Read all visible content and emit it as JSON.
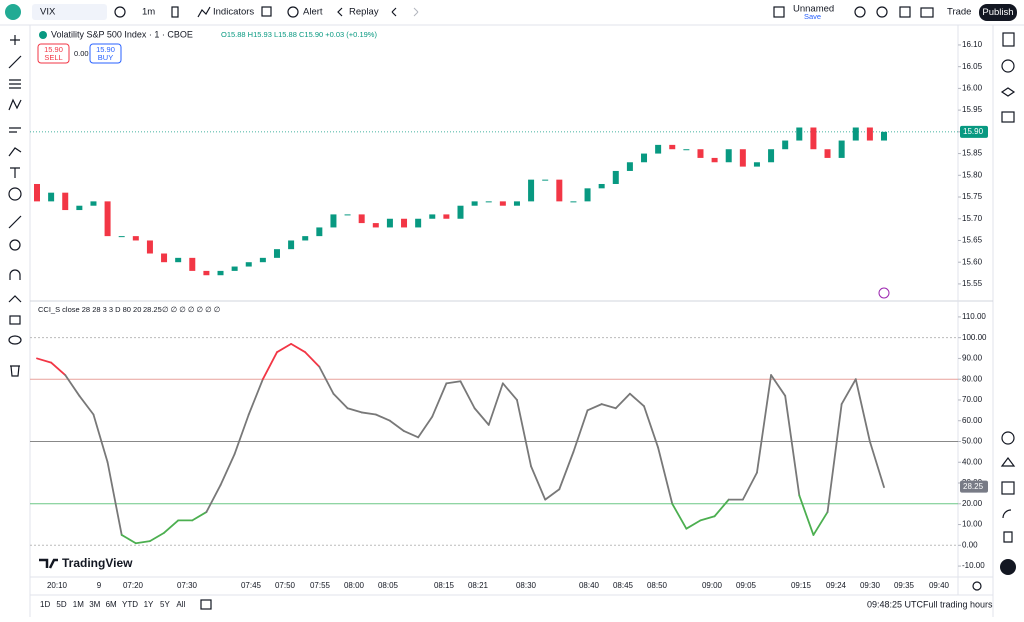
{
  "toolbar": {
    "symbol": "VIX",
    "interval": "1m",
    "indicators": "Indicators",
    "alert": "Alert",
    "replay": "Replay",
    "layout_name": "Unnamed",
    "save": "Save",
    "trade": "Trade",
    "publish": "Publish"
  },
  "legend": {
    "title": "Volatility S&P 500 Index · 1 · CBOE",
    "ohlc": "O15.88 H15.93 L15.88 C15.90 +0.03 (+0.19%)",
    "sell_price": "15.90",
    "sell": "SELL",
    "spread": "0.00",
    "buy_price": "15.90",
    "buy": "BUY"
  },
  "price_chart": {
    "type": "candlestick",
    "ylim": [
      15.513,
      16.139
    ],
    "yticks": [
      {
        "value": 16.1,
        "label": "16.10"
      },
      {
        "value": 16.05,
        "label": "16.05"
      },
      {
        "value": 16.0,
        "label": "16.00"
      },
      {
        "value": 15.95,
        "label": "15.95"
      },
      {
        "value": 15.9,
        "label": "15.90"
      },
      {
        "value": 15.85,
        "label": "15.85"
      },
      {
        "value": 15.8,
        "label": "15.80"
      },
      {
        "value": 15.75,
        "label": "15.75"
      },
      {
        "value": 15.7,
        "label": "15.70"
      },
      {
        "value": 15.65,
        "label": "15.65"
      },
      {
        "value": 15.6,
        "label": "15.60"
      },
      {
        "value": 15.55,
        "label": "15.55"
      }
    ],
    "up_color": "#089981",
    "down_color": "#f23645",
    "open": [
      15.78,
      15.74,
      15.76,
      15.72,
      15.73,
      15.74,
      15.66,
      15.66,
      15.65,
      15.62,
      15.6,
      15.61,
      15.58,
      15.57,
      15.58,
      15.59,
      15.6,
      15.61,
      15.63,
      15.65,
      15.66,
      15.68,
      15.71,
      15.71,
      15.69,
      15.68,
      15.7,
      15.68,
      15.7,
      15.71,
      15.7,
      15.73,
      15.74,
      15.74,
      15.73,
      15.74,
      15.79,
      15.79,
      15.74,
      15.74,
      15.77,
      15.78,
      15.81,
      15.83,
      15.85,
      15.87,
      15.86,
      15.86,
      15.84,
      15.83,
      15.86,
      15.82,
      15.83,
      15.86,
      15.88,
      15.91,
      15.86,
      15.84,
      15.88,
      15.91,
      15.88
    ],
    "close": [
      15.74,
      15.76,
      15.72,
      15.73,
      15.74,
      15.66,
      15.66,
      15.65,
      15.62,
      15.6,
      15.61,
      15.58,
      15.57,
      15.58,
      15.59,
      15.6,
      15.61,
      15.63,
      15.65,
      15.66,
      15.68,
      15.71,
      15.71,
      15.69,
      15.68,
      15.7,
      15.68,
      15.7,
      15.71,
      15.7,
      15.73,
      15.74,
      15.74,
      15.73,
      15.74,
      15.79,
      15.79,
      15.74,
      15.74,
      15.77,
      15.78,
      15.81,
      15.83,
      15.85,
      15.87,
      15.86,
      15.86,
      15.84,
      15.83,
      15.86,
      15.82,
      15.83,
      15.86,
      15.88,
      15.91,
      15.86,
      15.84,
      15.88,
      15.91,
      15.88,
      15.9
    ],
    "last_price": {
      "value": 15.9,
      "label": "15.90"
    }
  },
  "indicator": {
    "type": "line",
    "legend": "CCI_S close 28 28 3 3 D 80 20",
    "legend_value": "28.25",
    "legend_flags": "∅ ∅ ∅ ∅ ∅ ∅ ∅",
    "ylim": [
      -14.3,
      116.7
    ],
    "yticks": [
      {
        "value": 110,
        "label": "110.00"
      },
      {
        "value": 100,
        "label": "100.00"
      },
      {
        "value": 90,
        "label": "90.00"
      },
      {
        "value": 80,
        "label": "80.00"
      },
      {
        "value": 70,
        "label": "70.00"
      },
      {
        "value": 60,
        "label": "60.00"
      },
      {
        "value": 50,
        "label": "50.00"
      },
      {
        "value": 40,
        "label": "40.00"
      },
      {
        "value": 30,
        "label": "30.00"
      },
      {
        "value": 20,
        "label": "20.00"
      },
      {
        "value": 10,
        "label": "10.00"
      },
      {
        "value": 0,
        "label": "0.00"
      },
      {
        "value": -10,
        "label": "-10.00"
      }
    ],
    "levels": [
      {
        "value": 100,
        "color": "#bbbbbb"
      },
      {
        "value": 80,
        "color": "#e8a19b"
      },
      {
        "value": 50,
        "color": "#888888"
      },
      {
        "value": 20,
        "color": "#6cc785"
      },
      {
        "value": 0,
        "color": "#bbbbbb"
      }
    ],
    "upper": 80,
    "lower": 20,
    "color": "#787878",
    "upper_color": "#f23645",
    "lower_color": "#4caf50",
    "values": [
      90,
      88,
      82,
      72,
      63,
      40,
      5,
      1,
      2,
      6,
      12,
      12,
      16,
      29,
      44,
      63,
      80,
      93,
      97,
      93,
      86,
      73,
      66,
      64,
      63,
      60,
      55,
      52,
      62,
      78,
      79,
      66,
      58,
      78,
      70,
      38,
      22,
      27,
      45,
      65,
      68,
      66,
      73,
      67,
      47,
      20,
      8,
      12,
      14,
      22,
      22,
      35,
      82,
      72,
      24,
      5,
      16,
      68,
      80,
      50,
      28
    ],
    "last_value": {
      "value": 28.25,
      "label": "28.25"
    }
  },
  "time_axis": [
    "20:10",
    "9",
    "07:20",
    "07:30",
    "07:45",
    "07:50",
    "07:55",
    "08:00",
    "08:05",
    "08:15",
    "08:21",
    "08:30",
    "08:40",
    "08:45",
    "08:50",
    "09:00",
    "09:05",
    "09:15",
    "09:24",
    "09:30",
    "09:35",
    "09:40"
  ],
  "brand": "TradingView",
  "bottom_bar": {
    "ranges": [
      "1D",
      "5D",
      "1M",
      "3M",
      "6M",
      "YTD",
      "1Y",
      "5Y",
      "All"
    ],
    "clock": "09:48:25 UTC",
    "session": "Full trading hours"
  }
}
